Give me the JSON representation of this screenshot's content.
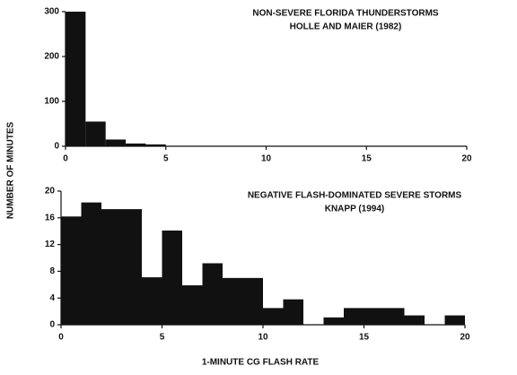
{
  "chart_data": [
    {
      "type": "histogram",
      "title": "NON-SEVERE FLORIDA THUNDERSTORMS",
      "subtitle": "HOLLE AND MAIER (1982)",
      "bins": [
        0,
        1,
        2,
        3,
        4,
        5,
        6,
        7,
        8,
        9,
        10,
        11,
        12,
        13,
        14,
        15,
        16,
        17,
        18,
        19,
        20
      ],
      "values": [
        300,
        55,
        15,
        6,
        4,
        1,
        1,
        1,
        1,
        1,
        0,
        0,
        0,
        0,
        0,
        0,
        0,
        0,
        0,
        0
      ],
      "color": "#111111",
      "xlim": [
        0,
        20
      ],
      "xticks": [
        0,
        5,
        10,
        15,
        20
      ],
      "ylim": [
        0,
        300
      ],
      "yticks": [
        0,
        100,
        200,
        300
      ]
    },
    {
      "type": "histogram",
      "title": "NEGATIVE FLASH-DOMINATED SEVERE STORMS",
      "subtitle": "KNAPP (1994)",
      "bins": [
        0,
        1,
        2,
        3,
        4,
        5,
        6,
        7,
        8,
        9,
        10,
        11,
        12,
        13,
        14,
        15,
        16,
        17,
        18,
        19,
        20
      ],
      "values": [
        16.2,
        18.3,
        17.3,
        17.3,
        7.1,
        14.1,
        5.9,
        9.2,
        7.0,
        7.0,
        2.5,
        3.8,
        0,
        1.1,
        2.5,
        2.5,
        2.5,
        1.4,
        0,
        1.4
      ],
      "color": "#111111",
      "xlim": [
        0,
        20
      ],
      "xticks": [
        0,
        5,
        10,
        15,
        20
      ],
      "ylim": [
        0,
        20
      ],
      "yticks": [
        0,
        4,
        8,
        12,
        16,
        20
      ]
    }
  ],
  "ylabel": "NUMBER OF MINUTES",
  "xlabel": "1-MINUTE CG FLASH RATE"
}
